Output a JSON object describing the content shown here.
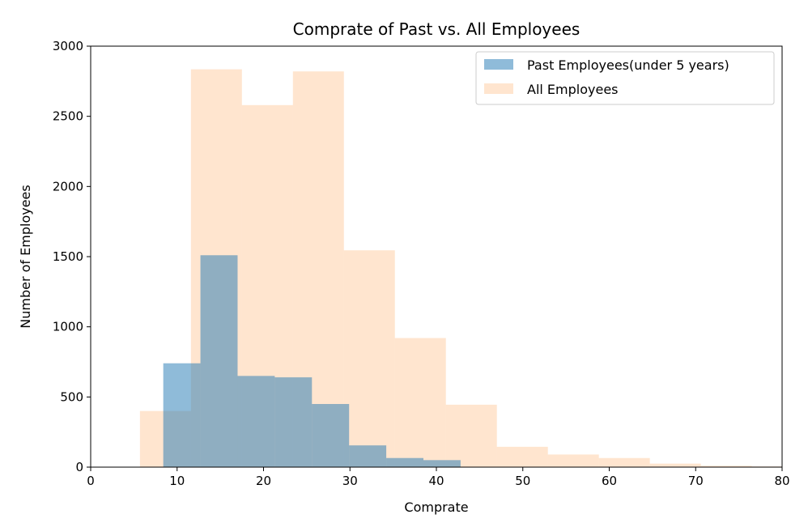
{
  "chart_data": {
    "type": "bar",
    "title": "Comprate of Past vs. All Employees",
    "xlabel": "Comprate",
    "ylabel": "Number of Employees",
    "xlim": [
      0,
      80
    ],
    "ylim": [
      0,
      3000
    ],
    "xticks": [
      "0",
      "10",
      "20",
      "30",
      "40",
      "50",
      "60",
      "70",
      "80"
    ],
    "yticks": [
      "0",
      "500",
      "1000",
      "1500",
      "2000",
      "2500",
      "3000"
    ],
    "grid": false,
    "legend_position": "top-right",
    "series": [
      {
        "name": "Past Employees(under 5 years)",
        "color": "#1f77b4",
        "opacity": 0.5,
        "bins": [
          {
            "x0": 8.4,
            "x1": 12.7,
            "value": 740
          },
          {
            "x0": 12.7,
            "x1": 17.0,
            "value": 1510
          },
          {
            "x0": 17.0,
            "x1": 21.3,
            "value": 650
          },
          {
            "x0": 21.3,
            "x1": 25.6,
            "value": 640
          },
          {
            "x0": 25.6,
            "x1": 29.9,
            "value": 450
          },
          {
            "x0": 29.9,
            "x1": 34.2,
            "value": 155
          },
          {
            "x0": 34.2,
            "x1": 38.5,
            "value": 65
          },
          {
            "x0": 38.5,
            "x1": 42.8,
            "value": 50
          }
        ]
      },
      {
        "name": "All Employees",
        "color": "#ff7f0e",
        "opacity": 0.2,
        "bins": [
          {
            "x0": 5.7,
            "x1": 11.6,
            "value": 400
          },
          {
            "x0": 11.6,
            "x1": 17.5,
            "value": 2835
          },
          {
            "x0": 17.5,
            "x1": 23.4,
            "value": 2580
          },
          {
            "x0": 23.4,
            "x1": 29.3,
            "value": 2820
          },
          {
            "x0": 29.3,
            "x1": 35.2,
            "value": 1545
          },
          {
            "x0": 35.2,
            "x1": 41.1,
            "value": 920
          },
          {
            "x0": 41.1,
            "x1": 47.0,
            "value": 445
          },
          {
            "x0": 47.0,
            "x1": 52.9,
            "value": 145
          },
          {
            "x0": 52.9,
            "x1": 58.8,
            "value": 90
          },
          {
            "x0": 58.8,
            "x1": 64.7,
            "value": 65
          },
          {
            "x0": 64.7,
            "x1": 70.6,
            "value": 25
          },
          {
            "x0": 70.6,
            "x1": 76.5,
            "value": 10
          },
          {
            "x0": 76.5,
            "x1": 82.4,
            "value": 5
          }
        ]
      }
    ]
  }
}
